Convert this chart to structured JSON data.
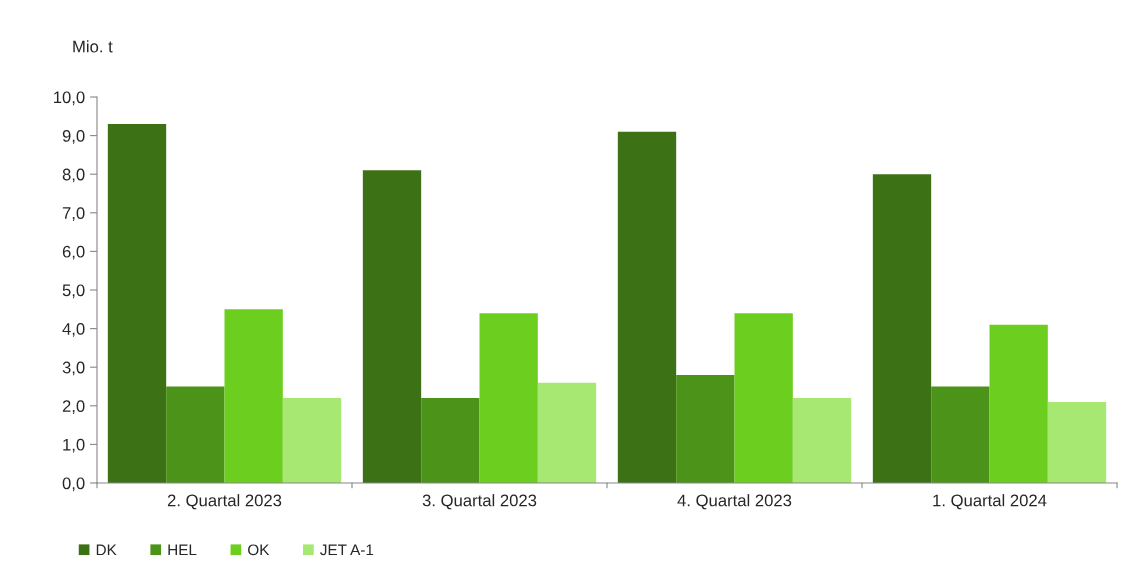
{
  "chart_data": {
    "type": "bar",
    "ylabel": "Mio. t",
    "categories": [
      "2. Quartal 2023",
      "3. Quartal 2023",
      "4. Quartal 2023",
      "1. Quartal 2024"
    ],
    "series": [
      {
        "name": "DK",
        "color": "#3d7115",
        "values": [
          9.3,
          8.1,
          9.1,
          8.0
        ]
      },
      {
        "name": "HEL",
        "color": "#4c9419",
        "values": [
          2.5,
          2.2,
          2.8,
          2.5
        ]
      },
      {
        "name": "OK",
        "color": "#6ccf1f",
        "values": [
          4.5,
          4.4,
          4.4,
          4.1
        ]
      },
      {
        "name": "JET A-1",
        "color": "#a6e872",
        "values": [
          2.2,
          2.6,
          2.2,
          2.1
        ]
      }
    ],
    "ylim": [
      0,
      10
    ],
    "yticks": [
      {
        "value": 0,
        "label": "0,0"
      },
      {
        "value": 1,
        "label": "1,0"
      },
      {
        "value": 2,
        "label": "2,0"
      },
      {
        "value": 3,
        "label": "3,0"
      },
      {
        "value": 4,
        "label": "4,0"
      },
      {
        "value": 5,
        "label": "5,0"
      },
      {
        "value": 6,
        "label": "6,0"
      },
      {
        "value": 7,
        "label": "7,0"
      },
      {
        "value": 8,
        "label": "8,0"
      },
      {
        "value": 9,
        "label": "9,0"
      },
      {
        "value": 10,
        "label": "10,0"
      }
    ],
    "grid": false,
    "legend": "bottom left"
  }
}
